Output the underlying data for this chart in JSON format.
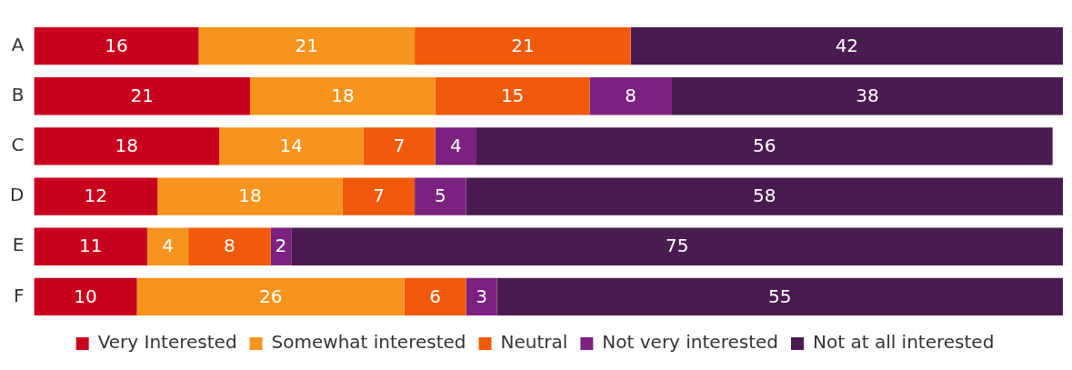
{
  "chart_data": {
    "type": "bar",
    "orientation": "horizontal",
    "stacked": true,
    "categories": [
      "A",
      "B",
      "C",
      "D",
      "E",
      "F"
    ],
    "xlim": [
      0,
      100
    ],
    "tick_labels": "y",
    "legend": "bottom",
    "data_labels": true,
    "series": [
      {
        "name": "Very Interested",
        "color": "#c8001e",
        "values": [
          16,
          21,
          18,
          12,
          11,
          10
        ]
      },
      {
        "name": "Somewhat interested",
        "color": "#f7941d",
        "values": [
          21,
          18,
          14,
          18,
          4,
          26
        ]
      },
      {
        "name": "Neutral",
        "color": "#f05a0a",
        "values": [
          21,
          15,
          7,
          7,
          8,
          6
        ]
      },
      {
        "name": "Not very interested",
        "color": "#7b2280",
        "values": [
          null,
          8,
          4,
          5,
          2,
          3
        ]
      },
      {
        "name": "Not at all interested",
        "color": "#4a1b50",
        "values": [
          42,
          38,
          56,
          58,
          75,
          55
        ]
      }
    ]
  }
}
